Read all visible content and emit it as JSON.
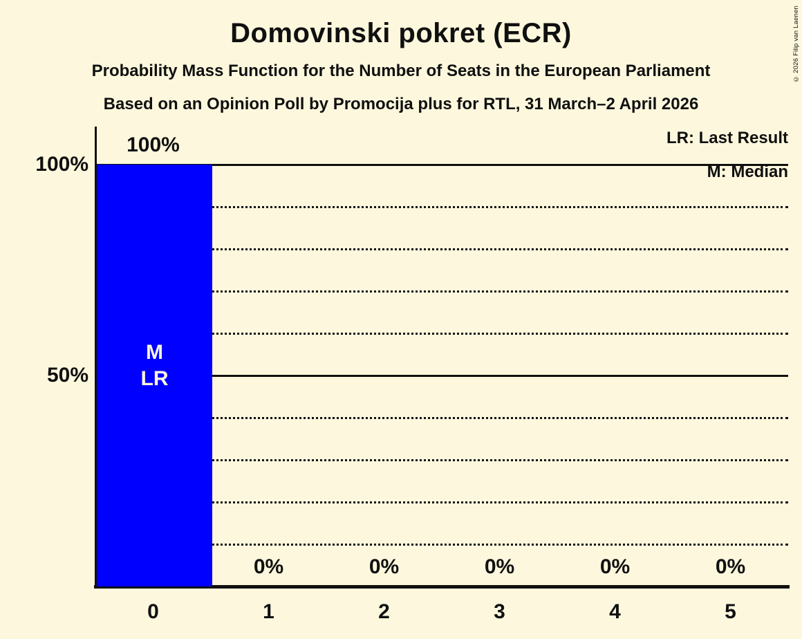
{
  "title": "Domovinski pokret (ECR)",
  "subtitle": "Probability Mass Function for the Number of Seats in the European Parliament",
  "source_line": "Based on an Opinion Poll by Promocija plus for RTL, 31 March–2 April 2026",
  "legend": {
    "last_result": "LR: Last Result",
    "median": "M: Median"
  },
  "copyright": "© 2026 Filip van Laenen",
  "colors": {
    "background": "#FDF8DD",
    "bar": "#0000FF",
    "text": "#101010",
    "grid": "#101010",
    "bar_annotation": "#FDF8DD"
  },
  "chart_data": {
    "type": "bar",
    "title": "Domovinski pokret (ECR)",
    "categories": [
      "0",
      "1",
      "2",
      "3",
      "4",
      "5"
    ],
    "values": [
      100,
      0,
      0,
      0,
      0,
      0
    ],
    "value_labels": [
      "100%",
      "0%",
      "0%",
      "0%",
      "0%",
      "0%"
    ],
    "bar_annotations": [
      [
        "M",
        "LR"
      ],
      [],
      [],
      [],
      [],
      []
    ],
    "annotation_meanings": {
      "M": "Median",
      "LR": "Last Result"
    },
    "xlabel": "",
    "ylabel": "",
    "ylim": [
      0,
      100
    ],
    "yticks": [
      {
        "value": 100,
        "label": "100%"
      },
      {
        "value": 50,
        "label": "50%"
      }
    ],
    "gridlines": [
      {
        "value": 100,
        "style": "solid"
      },
      {
        "value": 90,
        "style": "dotted"
      },
      {
        "value": 80,
        "style": "dotted"
      },
      {
        "value": 70,
        "style": "dotted"
      },
      {
        "value": 60,
        "style": "dotted"
      },
      {
        "value": 50,
        "style": "solid"
      },
      {
        "value": 40,
        "style": "dotted"
      },
      {
        "value": 30,
        "style": "dotted"
      },
      {
        "value": 20,
        "style": "dotted"
      },
      {
        "value": 10,
        "style": "dotted"
      }
    ],
    "grid": true,
    "legend_position": "top-right"
  }
}
